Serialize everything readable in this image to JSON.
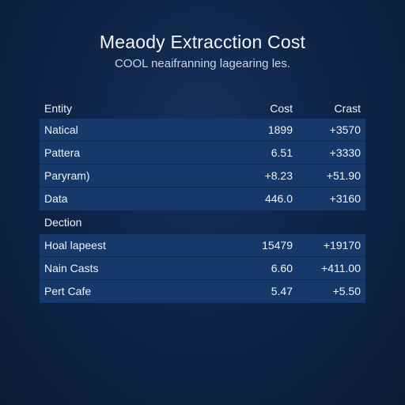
{
  "title": "Meaody Extracction Cost",
  "subtitle": "COOL neaifranning lagearing les.",
  "table": {
    "headers": [
      "Entity",
      "Cost",
      "Crast"
    ],
    "group1": [
      [
        "Natical",
        "1899",
        "+3570"
      ],
      [
        "Pattera",
        "6.51",
        "+3330"
      ],
      [
        "Paryram)",
        "+8.23",
        "+51.90"
      ],
      [
        "Data",
        "446.0",
        "+3160"
      ]
    ],
    "section_label": "Dection",
    "group2": [
      [
        "Hoal lapeest",
        "15479",
        "+19170"
      ],
      [
        "Nain Casts",
        "6.60",
        "+411.00"
      ],
      [
        "Pert Cafe",
        "5.47",
        "+5.50"
      ]
    ]
  },
  "colors": {
    "background": "#0f2549",
    "row_band": "#15396a",
    "text": "#eef3fb"
  }
}
